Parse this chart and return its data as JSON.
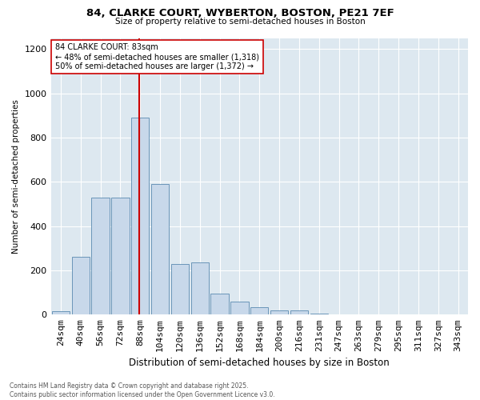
{
  "title_line1": "84, CLARKE COURT, WYBERTON, BOSTON, PE21 7EF",
  "title_line2": "Size of property relative to semi-detached houses in Boston",
  "xlabel": "Distribution of semi-detached houses by size in Boston",
  "ylabel": "Number of semi-detached properties",
  "categories": [
    "24sqm",
    "40sqm",
    "56sqm",
    "72sqm",
    "88sqm",
    "104sqm",
    "120sqm",
    "136sqm",
    "152sqm",
    "168sqm",
    "184sqm",
    "200sqm",
    "216sqm",
    "231sqm",
    "247sqm",
    "263sqm",
    "279sqm",
    "295sqm",
    "311sqm",
    "327sqm",
    "343sqm"
  ],
  "values": [
    15,
    260,
    530,
    530,
    890,
    590,
    230,
    235,
    95,
    60,
    35,
    18,
    18,
    3,
    2,
    1,
    0,
    0,
    0,
    0,
    0
  ],
  "bar_color": "#c8d8ea",
  "bar_edge_color": "#5a8ab0",
  "property_size": "83sqm",
  "property_name": "84 CLARKE COURT",
  "pct_smaller": 48,
  "count_smaller": 1318,
  "pct_larger": 50,
  "count_larger": 1372,
  "red_line_color": "#cc0000",
  "ylim_max": 1250,
  "annotation_box_color": "#ffffff",
  "annotation_box_edge": "#cc0000",
  "footnote_line1": "Contains HM Land Registry data © Crown copyright and database right 2025.",
  "footnote_line2": "Contains public sector information licensed under the Open Government Licence v3.0.",
  "background_color": "#dde8f0",
  "grid_color": "#ffffff"
}
